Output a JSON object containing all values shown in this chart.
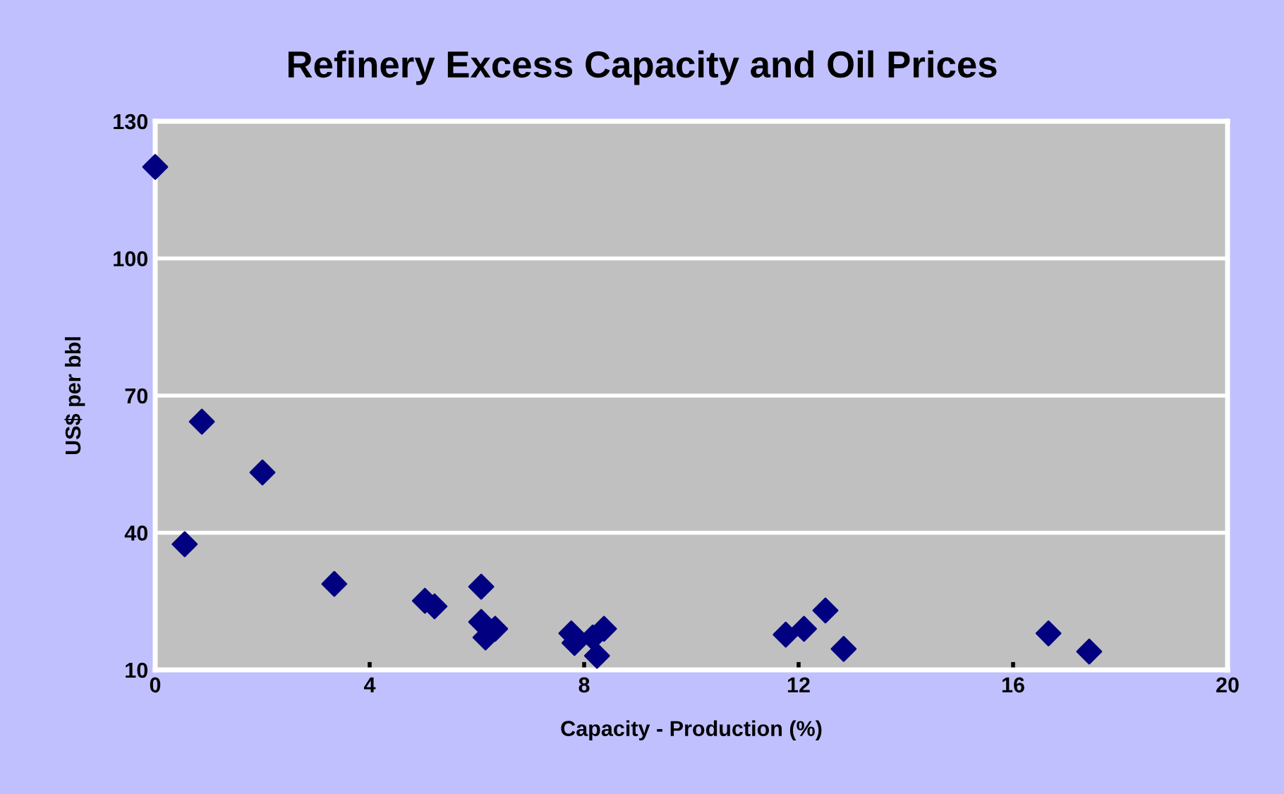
{
  "chart_data": {
    "type": "scatter",
    "title": "Refinery Excess Capacity and Oil Prices",
    "xlabel": "Capacity - Production (%)",
    "ylabel": "US$ per bbl",
    "x": [
      0,
      0.87,
      2.0,
      0.55,
      3.34,
      5.03,
      5.21,
      6.08,
      6.08,
      6.16,
      6.34,
      7.76,
      7.82,
      8.16,
      8.24,
      8.37,
      11.76,
      12.1,
      12.5,
      12.84,
      16.66,
      17.42
    ],
    "values": [
      120,
      64.3,
      53.2,
      37.5,
      28.8,
      25.1,
      23.9,
      28.2,
      20.5,
      17.1,
      19.0,
      18.0,
      15.9,
      17.1,
      13.1,
      19.0,
      17.7,
      19.0,
      23.0,
      14.6,
      18.0,
      14.0
    ],
    "color": "#000080",
    "marker": "diamond",
    "xlim": [
      0,
      20
    ],
    "xticks": [
      0,
      4,
      8,
      12,
      16,
      20
    ],
    "ylim": [
      10,
      130
    ],
    "yticks": [
      10,
      40,
      70,
      100,
      130
    ],
    "grid": "y"
  }
}
